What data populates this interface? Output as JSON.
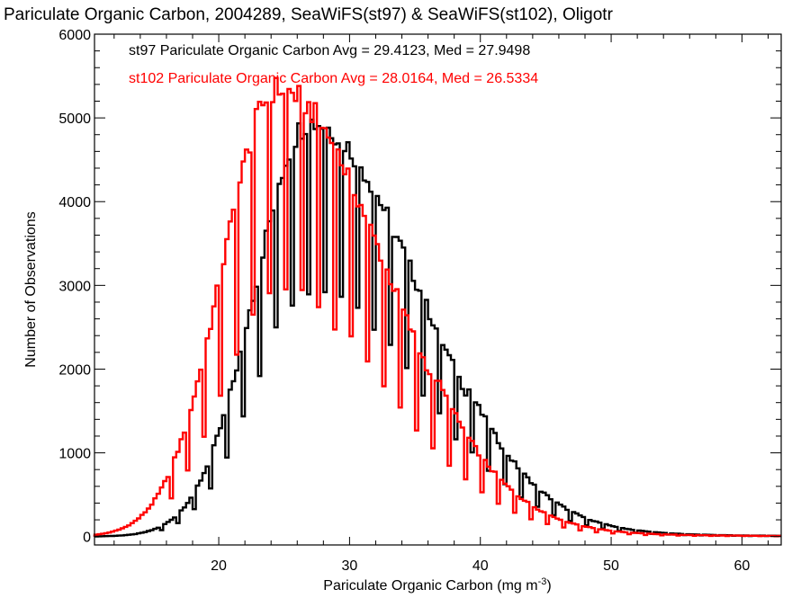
{
  "chart_data": {
    "type": "histogram-step",
    "title": "Pariculate Organic Carbon, 2004289, SeaWiFS(st97) & SeaWiFS(st102), Oligotr",
    "xlabel": "Pariculate Organic Carbon (mg m",
    "xlabel_sup": "-3",
    "xlabel_end": ")",
    "ylabel": "Number of Observations",
    "xlim": [
      10.5,
      63
    ],
    "ylim": [
      -100,
      6000
    ],
    "xticks": [
      20,
      30,
      40,
      50,
      60
    ],
    "xtick_labels": [
      "20",
      "30",
      "40",
      "50",
      "60"
    ],
    "yticks": [
      0,
      1000,
      2000,
      3000,
      4000,
      5000,
      6000
    ],
    "ytick_labels": [
      "0",
      "1000",
      "2000",
      "3000",
      "4000",
      "5000",
      "6000"
    ],
    "bin_width": 0.25,
    "grid": false,
    "legend_position": "top-left",
    "series": [
      {
        "label": "st97 Pariculate Organic Carbon Avg = 29.4123, Med = 27.9498",
        "color": "#000000",
        "mean": 29.4123,
        "median": 27.9498,
        "peak_x": 27,
        "peak_y": 5000,
        "spike_fraction": 0.4
      },
      {
        "label": "st102 Pariculate Organic Carbon Avg = 28.0164, Med = 26.5334",
        "color": "#ff0000",
        "mean": 28.0164,
        "median": 26.5334,
        "peak_x": 24.5,
        "peak_y": 5400,
        "spike_fraction": 0.45
      }
    ]
  }
}
